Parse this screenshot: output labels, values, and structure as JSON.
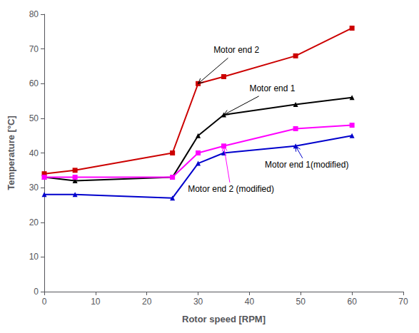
{
  "chart_data": {
    "type": "line",
    "xlabel": "Rotor speed [RPM]",
    "ylabel": "Temperature [°C]",
    "x": [
      0,
      6,
      25,
      30,
      35,
      49,
      60
    ],
    "series": [
      {
        "color": "#cc0000",
        "marker": "square",
        "values": [
          34,
          35,
          40,
          60,
          62,
          68,
          76
        ]
      },
      {
        "color": "#000000",
        "marker": "triangle",
        "values": [
          33,
          32,
          33,
          45,
          51,
          54,
          56
        ]
      },
      {
        "color": "#ff00ff",
        "marker": "square",
        "values": [
          33,
          33,
          33,
          40,
          42,
          47,
          48
        ]
      },
      {
        "color": "#0000cc",
        "marker": "triangle",
        "values": [
          28,
          28,
          27,
          37,
          40,
          42,
          45
        ]
      }
    ],
    "xlim": [
      0,
      70
    ],
    "ylim": [
      0,
      80
    ],
    "xticks": [
      0,
      10,
      20,
      30,
      40,
      50,
      60,
      70
    ],
    "yticks": [
      0,
      10,
      20,
      30,
      40,
      50,
      60,
      70,
      80
    ],
    "grid": false,
    "annotations": [
      {
        "text": "Motor end 2",
        "xy": [
          30,
          60
        ],
        "xytext": [
          33,
          68
        ],
        "color": "#000000"
      },
      {
        "text": "Motor end 1",
        "xy": [
          35,
          51
        ],
        "xytext": [
          40,
          57
        ],
        "color": "#000000"
      },
      {
        "text": "Motor end 2 (modified)",
        "xy": [
          35,
          42
        ],
        "xytext": [
          28,
          28
        ],
        "color": "#ff00ff"
      },
      {
        "text": "Motor end 1(modified)",
        "xy": [
          49,
          42
        ],
        "xytext": [
          43,
          35
        ],
        "color": "#0000cc"
      }
    ]
  }
}
